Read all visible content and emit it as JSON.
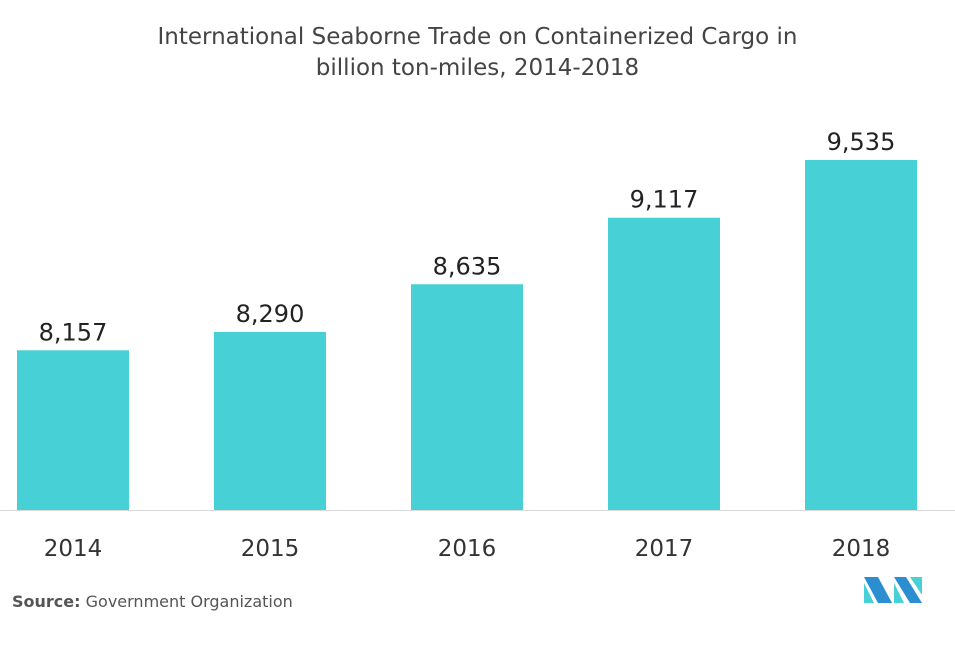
{
  "chart_data": {
    "type": "bar",
    "title_line1": "International Seaborne Trade on Containerized Cargo in",
    "title_line2": "billion ton-miles, 2014-2018",
    "categories": [
      "2014",
      "2015",
      "2016",
      "2017",
      "2018"
    ],
    "values": [
      8157,
      8290,
      8635,
      9117,
      9535
    ],
    "data_labels": [
      "8,157",
      "8,290",
      "8,635",
      "9,117",
      "9,535"
    ],
    "xlabel": "",
    "ylabel": "",
    "ylim": [
      7000,
      10000
    ],
    "grid": false,
    "bar_color": "#47d0d6"
  },
  "source": {
    "label": "Source:",
    "text": "Government Organization"
  },
  "logo": {
    "colors": [
      "#2b8ed0",
      "#47d0d6"
    ]
  }
}
